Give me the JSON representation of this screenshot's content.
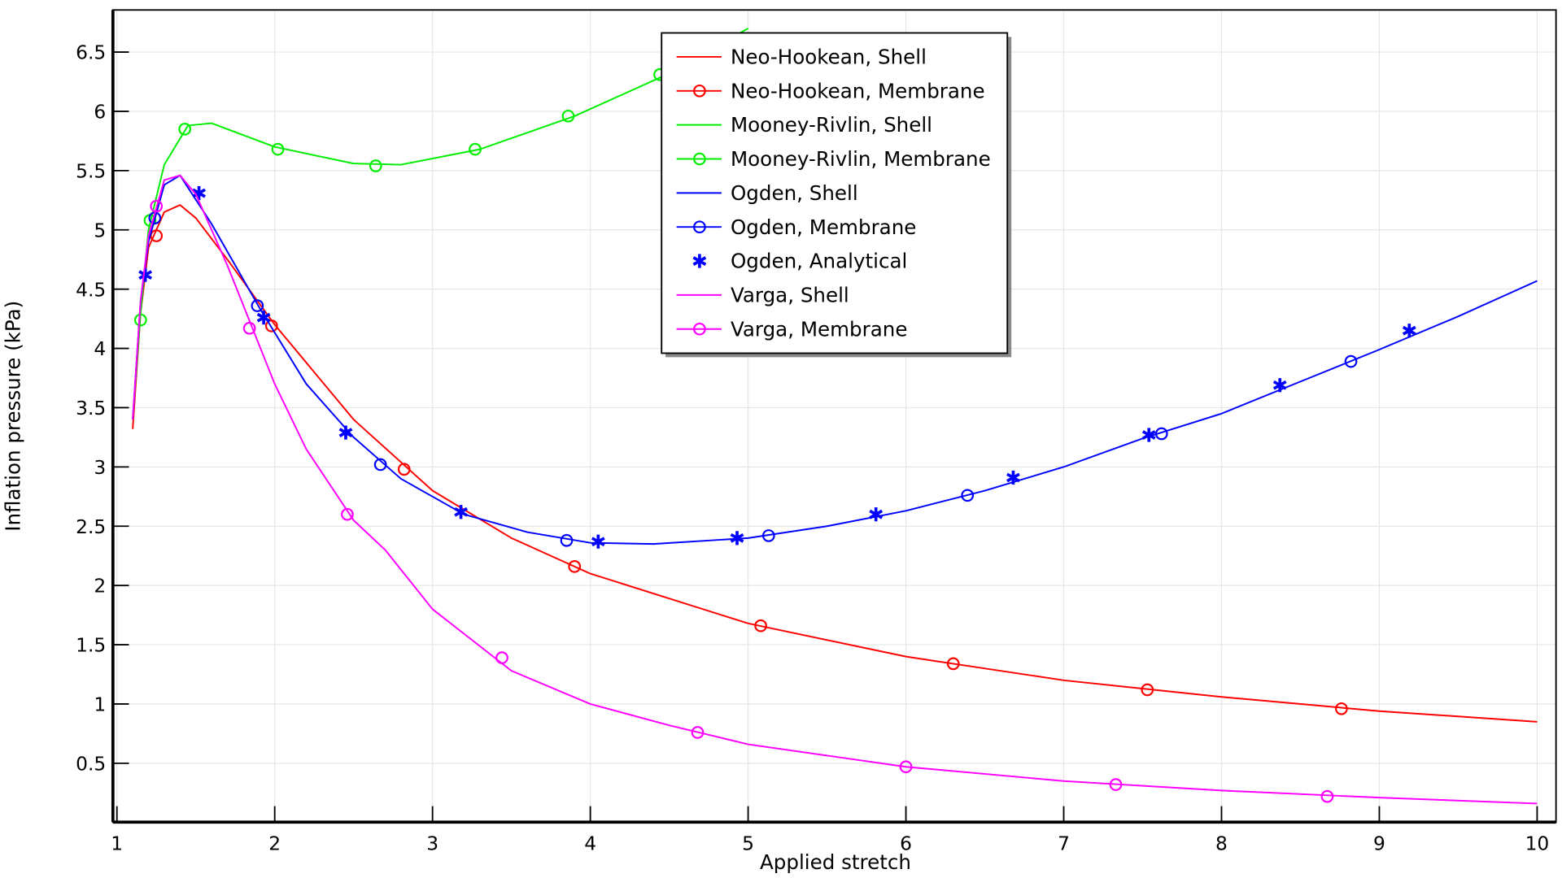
{
  "chart_data": {
    "type": "line",
    "title": "",
    "xlabel": "Applied stretch",
    "ylabel": "Inflation pressure (kPa)",
    "xlim": [
      0.98,
      10.12
    ],
    "ylim": [
      0,
      6.9
    ],
    "grid": true,
    "legend_position": "top-center",
    "xticks": [
      1,
      2,
      3,
      4,
      5,
      6,
      7,
      8,
      9,
      10
    ],
    "xtick_labels": [
      "1",
      "2",
      "3",
      "4",
      "5",
      "6",
      "7",
      "8",
      "9",
      "10"
    ],
    "yticks": [
      0.5,
      1,
      1.5,
      2,
      2.5,
      3,
      3.5,
      4,
      4.5,
      5,
      5.5,
      6,
      6.5
    ],
    "ytick_labels": [
      "0.5",
      "1",
      "1.5",
      "2",
      "2.5",
      "3",
      "3.5",
      "4",
      "4.5",
      "5",
      "5.5",
      "6",
      "6.5"
    ],
    "series": [
      {
        "name": "Neo-Hookean, Shell",
        "color": "#ff0000",
        "style": "line",
        "x": [
          1.1,
          1.15,
          1.2,
          1.3,
          1.4,
          1.5,
          1.7,
          2,
          2.5,
          3,
          3.5,
          4,
          5,
          6,
          7,
          8,
          9,
          10
        ],
        "y": [
          3.32,
          4.3,
          4.85,
          5.15,
          5.21,
          5.1,
          4.75,
          4.2,
          3.4,
          2.8,
          2.4,
          2.1,
          1.68,
          1.4,
          1.2,
          1.06,
          0.94,
          0.85
        ]
      },
      {
        "name": "Neo-Hookean, Membrane",
        "color": "#ff0000",
        "style": "circle",
        "x": [
          1.25,
          1.98,
          2.82,
          3.9,
          5.08,
          6.3,
          7.53,
          8.76
        ],
        "y": [
          4.95,
          4.19,
          2.98,
          2.16,
          1.66,
          1.34,
          1.12,
          0.96
        ]
      },
      {
        "name": "Mooney-Rivlin, Shell",
        "color": "#00ee00",
        "style": "line",
        "x": [
          1.1,
          1.15,
          1.2,
          1.3,
          1.45,
          1.6,
          2,
          2.5,
          2.8,
          3.3,
          3.9,
          4.5,
          5
        ],
        "y": [
          3.4,
          4.3,
          5.0,
          5.55,
          5.88,
          5.9,
          5.7,
          5.56,
          5.55,
          5.68,
          5.96,
          6.32,
          6.7
        ]
      },
      {
        "name": "Mooney-Rivlin, Membrane",
        "color": "#00ee00",
        "style": "circle",
        "x": [
          1.15,
          1.21,
          1.43,
          2.02,
          2.64,
          3.27,
          3.86,
          4.44
        ],
        "y": [
          4.24,
          5.08,
          5.85,
          5.68,
          5.54,
          5.68,
          5.96,
          6.31
        ]
      },
      {
        "name": "Ogden, Shell",
        "color": "#0000ff",
        "style": "line",
        "x": [
          1.1,
          1.15,
          1.2,
          1.3,
          1.4,
          1.6,
          1.9,
          2.2,
          2.5,
          2.8,
          3.2,
          3.6,
          4,
          4.4,
          5,
          5.5,
          6,
          6.5,
          7,
          7.5,
          8,
          8.5,
          9,
          9.5,
          10
        ],
        "y": [
          3.4,
          4.4,
          4.9,
          5.38,
          5.46,
          5.05,
          4.35,
          3.7,
          3.25,
          2.9,
          2.6,
          2.45,
          2.36,
          2.35,
          2.4,
          2.5,
          2.63,
          2.8,
          3.0,
          3.24,
          3.45,
          3.72,
          3.99,
          4.27,
          4.57
        ]
      },
      {
        "name": "Ogden, Membrane",
        "color": "#0000ff",
        "style": "circle",
        "x": [
          1.24,
          1.89,
          2.67,
          3.85,
          5.13,
          6.39,
          7.62,
          8.82
        ],
        "y": [
          5.1,
          4.36,
          3.02,
          2.38,
          2.42,
          2.76,
          3.28,
          3.89
        ]
      },
      {
        "name": "Ogden, Analytical",
        "color": "#0000ff",
        "style": "star",
        "x": [
          1.18,
          1.52,
          1.93,
          2.45,
          3.18,
          4.05,
          4.93,
          5.81,
          6.68,
          7.54,
          8.37,
          9.19
        ],
        "y": [
          4.62,
          5.31,
          4.26,
          3.29,
          2.62,
          2.37,
          2.4,
          2.6,
          2.91,
          3.27,
          3.69,
          4.15
        ]
      },
      {
        "name": "Varga, Shell",
        "color": "#ff00ff",
        "style": "line",
        "x": [
          1.1,
          1.15,
          1.2,
          1.3,
          1.4,
          1.5,
          1.7,
          1.85,
          2,
          2.2,
          2.5,
          2.7,
          3,
          3.5,
          4,
          4.5,
          5,
          6,
          7,
          8,
          9,
          10
        ],
        "y": [
          3.4,
          4.4,
          4.95,
          5.42,
          5.46,
          5.3,
          4.7,
          4.2,
          3.7,
          3.15,
          2.55,
          2.3,
          1.8,
          1.28,
          1.0,
          0.82,
          0.66,
          0.47,
          0.35,
          0.27,
          0.21,
          0.16
        ]
      },
      {
        "name": "Varga, Membrane",
        "color": "#ff00ff",
        "style": "circle",
        "x": [
          1.25,
          1.84,
          2.46,
          3.44,
          4.68,
          6.0,
          7.33,
          8.67
        ],
        "y": [
          5.2,
          4.17,
          2.6,
          1.39,
          0.76,
          0.47,
          0.32,
          0.22
        ]
      }
    ]
  }
}
